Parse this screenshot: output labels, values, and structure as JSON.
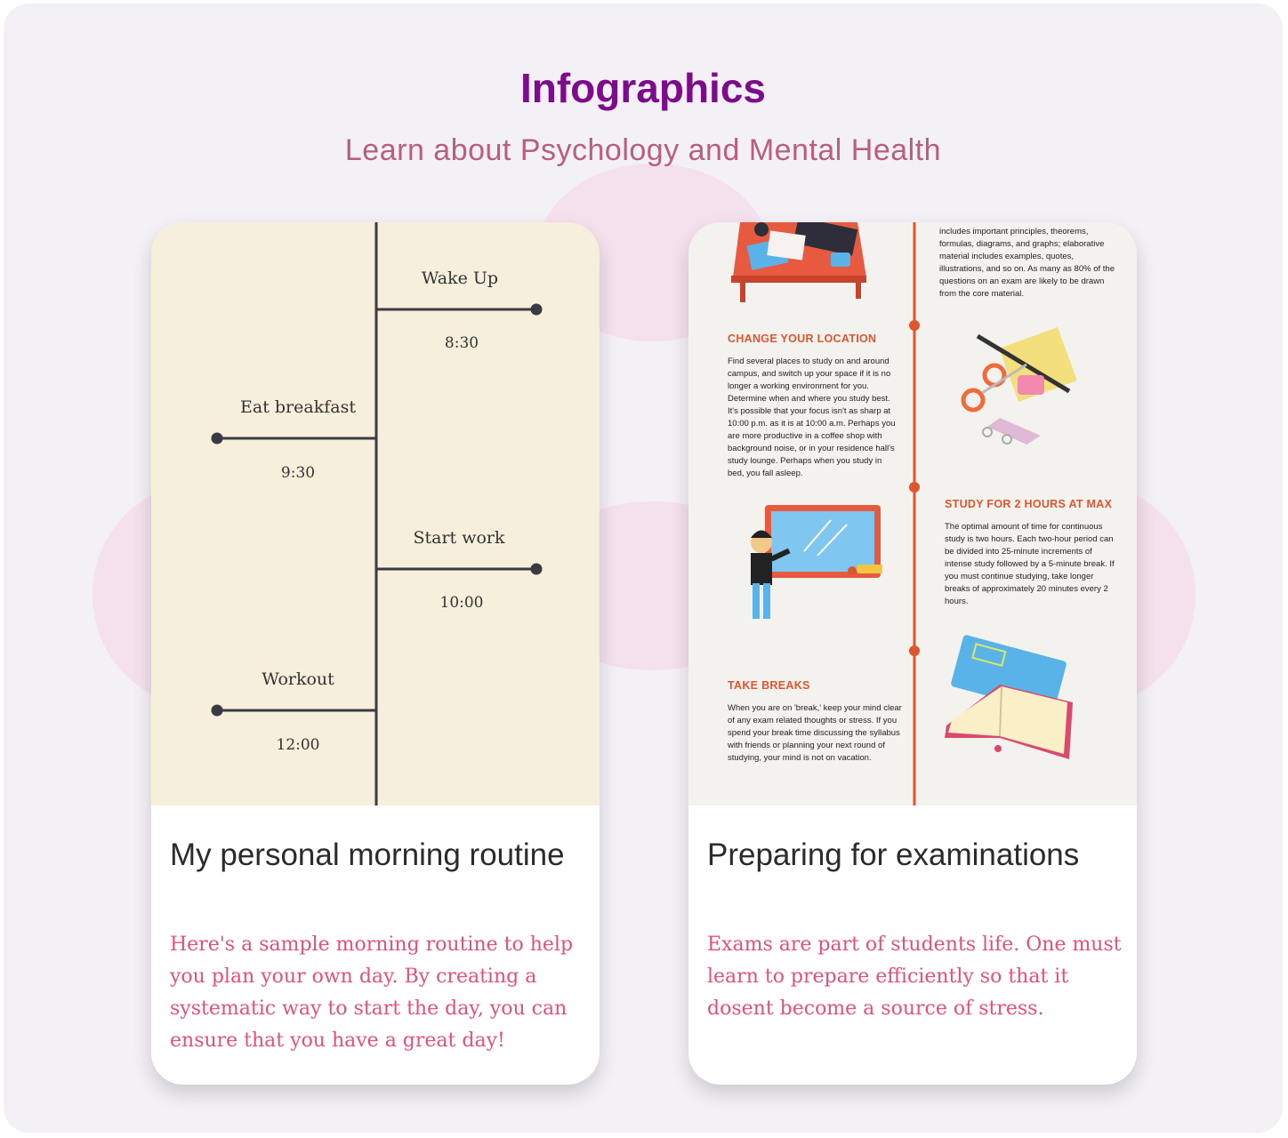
{
  "header": {
    "title": "Infographics",
    "subtitle": "Learn about Psychology and Mental Health"
  },
  "cards": [
    {
      "title": "My personal morning routine",
      "description": "Here's a sample morning routine to help you plan your own day. By creating a systematic way to start the day, you can ensure that you have a great day!",
      "timeline": [
        {
          "label": "Wake Up",
          "time": "8:30"
        },
        {
          "label": "Eat breakfast",
          "time": "9:30"
        },
        {
          "label": "Start work",
          "time": "10:00"
        },
        {
          "label": "Workout",
          "time": "12:00"
        }
      ],
      "colors": {
        "background": "#f6efdc",
        "line": "#3a3a45"
      }
    },
    {
      "title": "Preparing for examinations",
      "description": "Exams are part of students life. One must learn to prepare efficiently so that it dosent become a source of stress.",
      "infographic": {
        "intro_text": "includes important principles, theorems, formulas, diagrams, and graphs; elaborative material includes examples, quotes, illustrations, and so on. As many as 80% of the questions on an exam are likely to be drawn from the core material.",
        "sections": [
          {
            "heading": "CHANGE YOUR LOCATION",
            "body": "Find several places to study on and around campus, and switch up your space if it is no longer a working environment for you. Determine when and where you study best. It's possible that your focus isn't as sharp at 10:00 p.m. as it is at 10:00 a.m. Perhaps you are more productive in a coffee shop with background noise, or in your residence hall's study lounge. Perhaps when you study in bed, you fall asleep."
          },
          {
            "heading": "STUDY FOR 2 HOURS AT MAX",
            "body": "The optimal amount of time for continuous study is two hours. Each two-hour period can be divided into 25-minute increments of intense study followed by a 5-minute break. If you must continue studying, take longer breaks of approximately 20 minutes every 2 hours."
          },
          {
            "heading": "TAKE BREAKS",
            "body": "When you are on 'break,' keep your mind clear of any exam related thoughts or stress. If you spend your break time discussing the syllabus with friends or planning your next round of studying, your mind is not on vacation."
          }
        ]
      },
      "colors": {
        "background": "#f3f2ee",
        "accent": "#e0552e"
      }
    }
  ]
}
